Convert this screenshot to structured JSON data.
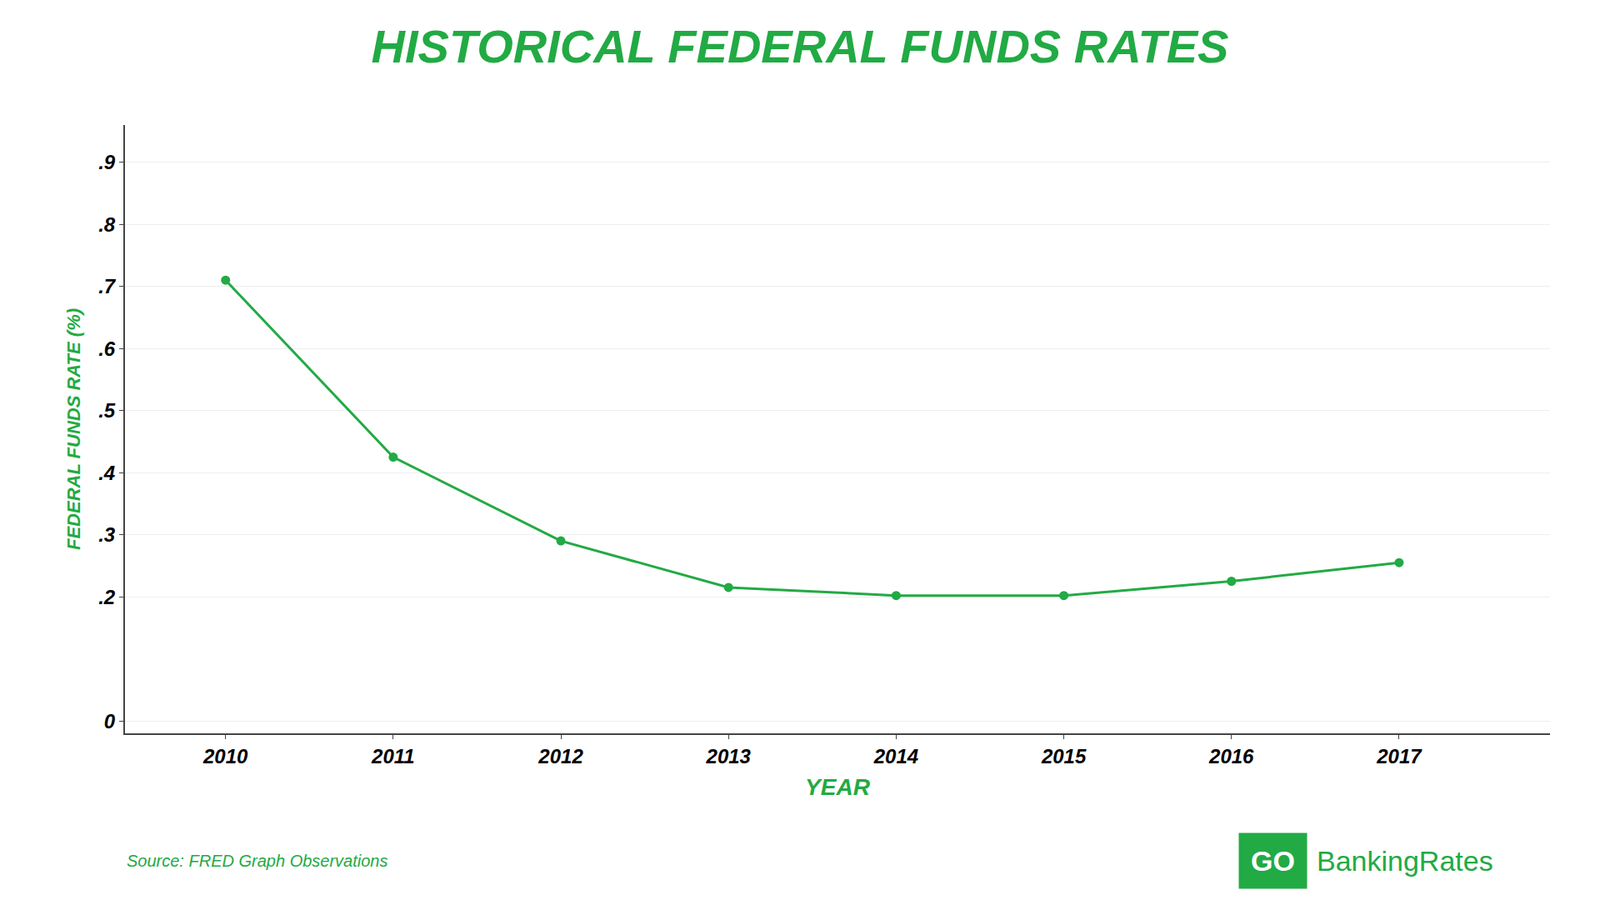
{
  "chart_data": {
    "type": "line",
    "title": "HISTORICAL FEDERAL FUNDS RATES",
    "x": [
      2010,
      2011,
      2012,
      2013,
      2014,
      2015,
      2016,
      2017
    ],
    "values": [
      0.71,
      0.425,
      0.29,
      0.215,
      0.202,
      0.202,
      0.225,
      0.255
    ],
    "color": "#22aa44",
    "marker": "circle",
    "line_style": "solid",
    "xlabel": "YEAR",
    "ylabel": "FEDERAL FUNDS RATE (%)",
    "xlim": [
      2009.4,
      2017.9
    ],
    "xticks": [
      2010,
      2011,
      2012,
      2013,
      2014,
      2015,
      2016,
      2017
    ],
    "ylim": [
      -0.02,
      0.96
    ],
    "yticks": [
      0,
      {
        "value": 0.2,
        "label": ".2"
      },
      {
        "value": 0.3,
        "label": ".3"
      },
      {
        "value": 0.4,
        "label": ".4"
      },
      {
        "value": 0.5,
        "label": ".5"
      },
      {
        "value": 0.6,
        "label": ".6"
      },
      {
        "value": 0.7,
        "label": ".7"
      },
      {
        "value": 0.8,
        "label": ".8"
      },
      {
        "value": 0.9,
        "label": ".9"
      }
    ],
    "grid": true,
    "annotations": [
      "Source: FRED Graph Observations",
      "GO",
      "BankingRates"
    ]
  }
}
